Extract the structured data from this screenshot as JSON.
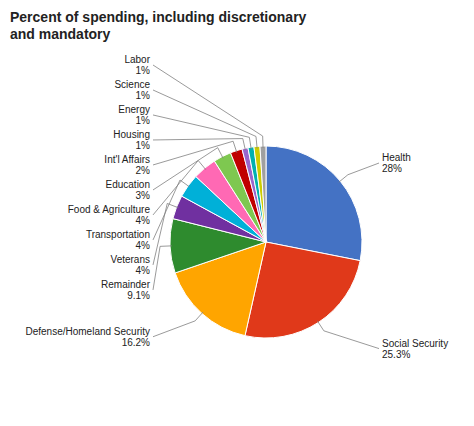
{
  "chart_data": {
    "type": "pie",
    "title": "Percent of spending, including discretionary\nand mandatory",
    "categories": [
      "Health",
      "Social Security",
      "Defense/Homeland Security",
      "Remainder",
      "Veterans",
      "Transportation",
      "Food & Agriculture",
      "Education",
      "Int'l Affairs",
      "Housing",
      "Energy",
      "Science",
      "Labor"
    ],
    "values": [
      28.0,
      25.3,
      16.2,
      9.1,
      4.0,
      4.0,
      4.0,
      3.0,
      2.0,
      1.0,
      1.0,
      1.0,
      1.0
    ],
    "value_labels": [
      "28%",
      "25.3%",
      "16.2%",
      "9.1%",
      "4%",
      "4%",
      "4%",
      "3%",
      "2%",
      "1%",
      "1%",
      "1%",
      "1%"
    ],
    "colors": [
      "#4472C4",
      "#E0391A",
      "#FFA500",
      "#2E8B2E",
      "#7030A0",
      "#00B0D8",
      "#FF69B4",
      "#7EC850",
      "#C00000",
      "#9966CC",
      "#00B0B0",
      "#CCCC00",
      "#A0A0A0"
    ],
    "data_labels": true
  }
}
